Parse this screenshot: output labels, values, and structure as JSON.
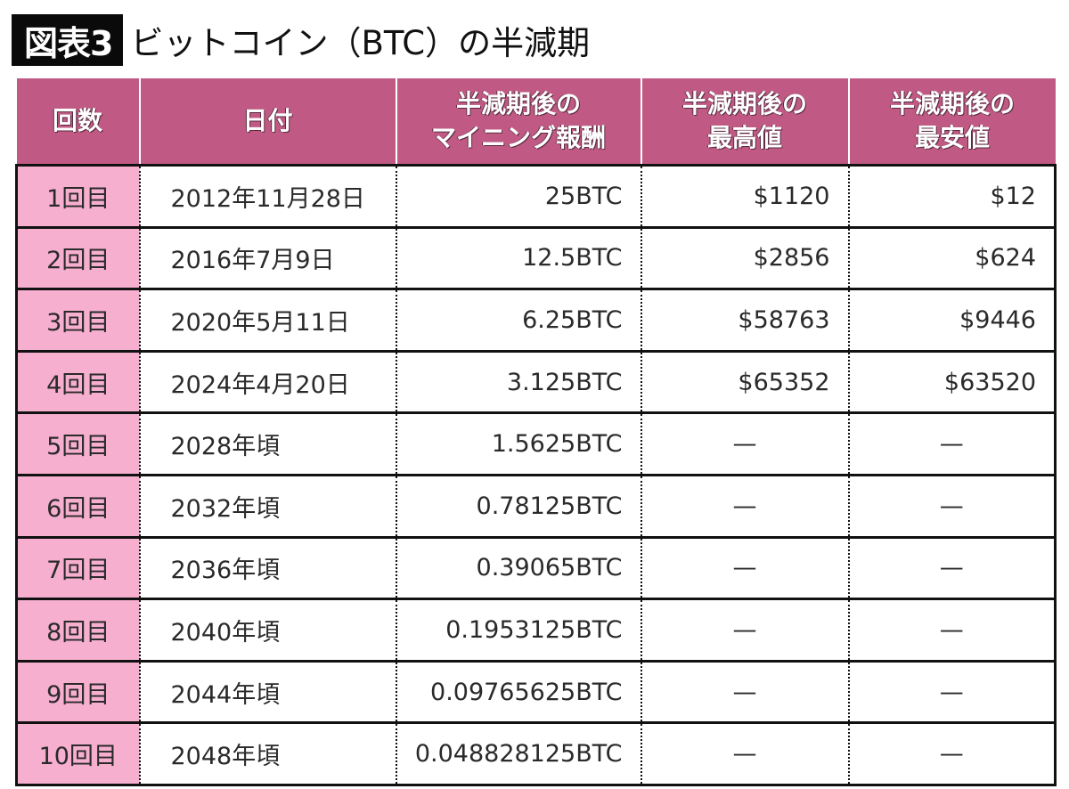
{
  "figure": {
    "badge": "図表3",
    "title": "ビットコイン（BTC）の半減期"
  },
  "table": {
    "headers": [
      [
        "回数"
      ],
      [
        "日付"
      ],
      [
        "半減期後の",
        "マイニング報酬"
      ],
      [
        "半減期後の",
        "最高値"
      ],
      [
        "半減期後の",
        "最安値"
      ]
    ],
    "rows": [
      {
        "count": "1回目",
        "date": "2012年11月28日",
        "reward": "25BTC",
        "high": "$1120",
        "low": "$12"
      },
      {
        "count": "2回目",
        "date": "2016年7月9日",
        "reward": "12.5BTC",
        "high": "$2856",
        "low": "$624"
      },
      {
        "count": "3回目",
        "date": "2020年5月11日",
        "reward": "6.25BTC",
        "high": "$58763",
        "low": "$9446"
      },
      {
        "count": "4回目",
        "date": "2024年4月20日",
        "reward": "3.125BTC",
        "high": "$65352",
        "low": "$63520"
      },
      {
        "count": "5回目",
        "date": "2028年頃",
        "reward": "1.5625BTC",
        "high": "—",
        "low": "—"
      },
      {
        "count": "6回目",
        "date": "2032年頃",
        "reward": "0.78125BTC",
        "high": "—",
        "low": "—"
      },
      {
        "count": "7回目",
        "date": "2036年頃",
        "reward": "0.39065BTC",
        "high": "—",
        "low": "—"
      },
      {
        "count": "8回目",
        "date": "2040年頃",
        "reward": "0.1953125BTC",
        "high": "—",
        "low": "—"
      },
      {
        "count": "9回目",
        "date": "2044年頃",
        "reward": "0.09765625BTC",
        "high": "—",
        "low": "—"
      },
      {
        "count": "10回目",
        "date": "2048年頃",
        "reward": "0.048828125BTC",
        "high": "—",
        "low": "—"
      }
    ]
  },
  "colors": {
    "header_bg": "#C05A85",
    "first_col_bg": "#F7AFD0",
    "badge_bg": "#0a0a0a"
  }
}
